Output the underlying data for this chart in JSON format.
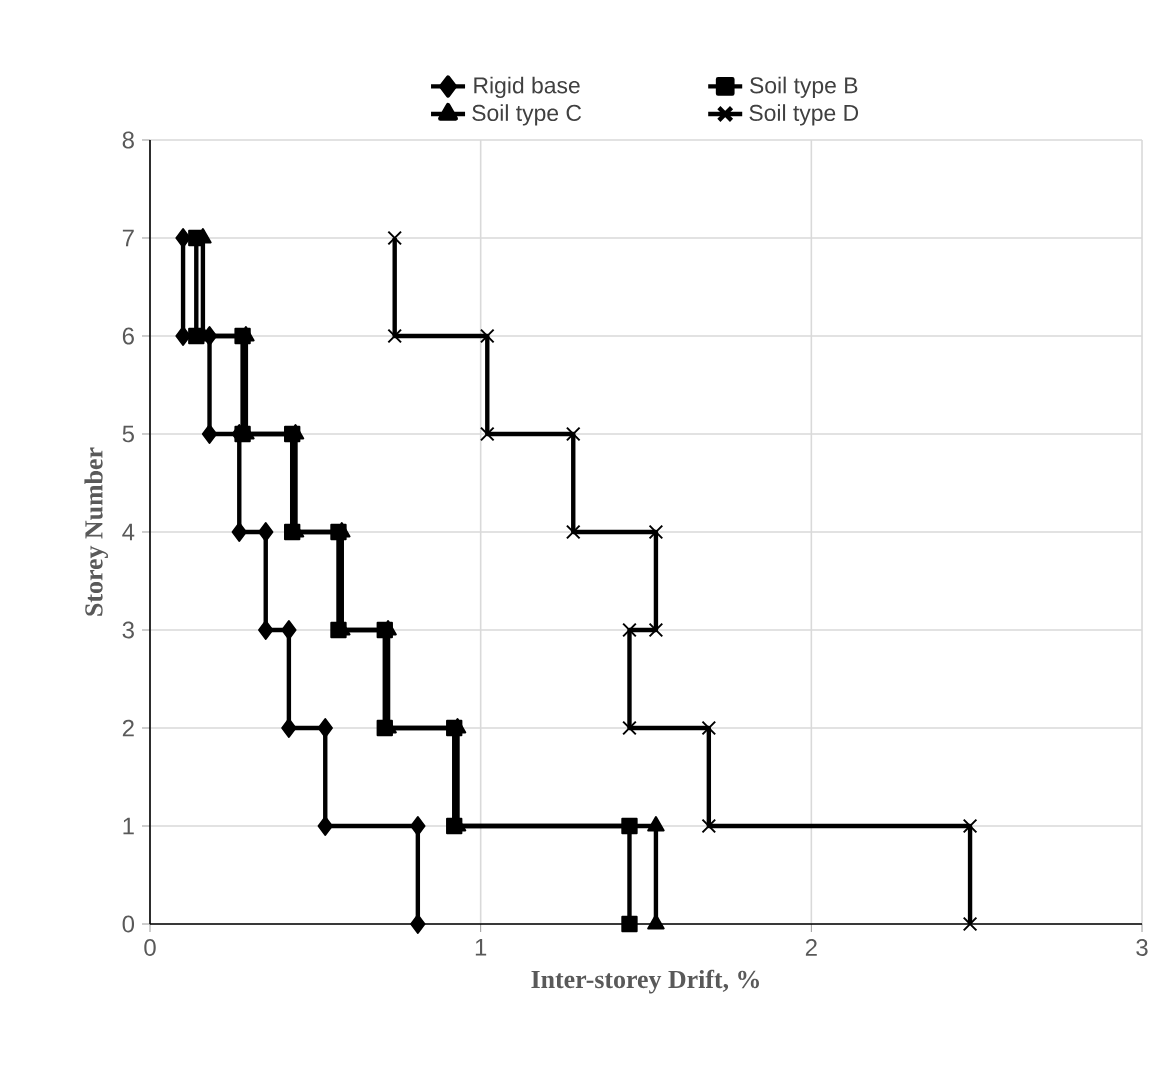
{
  "chart_data": {
    "type": "line",
    "xlabel": "Inter-storey Drift, %",
    "ylabel": "Storey Number",
    "xlim": [
      0,
      3
    ],
    "xticks": [
      0,
      1,
      2,
      3
    ],
    "ylim": [
      0,
      8
    ],
    "yticks": [
      0,
      1,
      2,
      3,
      4,
      5,
      6,
      7,
      8
    ],
    "grid": true,
    "legend": "top",
    "line_style": "solid",
    "series": [
      {
        "name": "Rigid base",
        "color": "#000000",
        "marker": "diamond",
        "x": [
          0.81,
          0.81,
          0.53,
          0.53,
          0.42,
          0.42,
          0.35,
          0.35,
          0.27,
          0.27,
          0.18,
          0.18,
          0.1,
          0.1
        ],
        "values": [
          0,
          1,
          1,
          2,
          2,
          3,
          3,
          4,
          4,
          5,
          5,
          6,
          6,
          7
        ]
      },
      {
        "name": "Soil type B",
        "color": "#000000",
        "marker": "square",
        "x": [
          1.45,
          1.45,
          0.92,
          0.92,
          0.71,
          0.71,
          0.57,
          0.57,
          0.43,
          0.43,
          0.28,
          0.28,
          0.14,
          0.14
        ],
        "values": [
          0,
          1,
          1,
          2,
          2,
          3,
          3,
          4,
          4,
          5,
          5,
          6,
          6,
          7
        ]
      },
      {
        "name": "Soil type C",
        "color": "#000000",
        "marker": "triangle",
        "x": [
          1.53,
          1.53,
          0.93,
          0.93,
          0.72,
          0.72,
          0.58,
          0.58,
          0.44,
          0.44,
          0.29,
          0.29,
          0.16,
          0.16
        ],
        "values": [
          0,
          1,
          1,
          2,
          2,
          3,
          3,
          4,
          4,
          5,
          5,
          6,
          6,
          7
        ]
      },
      {
        "name": "Soil type D",
        "color": "#000000",
        "marker": "cross",
        "x": [
          2.48,
          2.48,
          1.69,
          1.69,
          1.45,
          1.45,
          1.53,
          1.53,
          1.28,
          1.28,
          1.02,
          1.02,
          0.74,
          0.74
        ],
        "values": [
          0,
          1,
          1,
          2,
          2,
          3,
          3,
          4,
          4,
          5,
          5,
          6,
          6,
          7
        ]
      }
    ]
  }
}
